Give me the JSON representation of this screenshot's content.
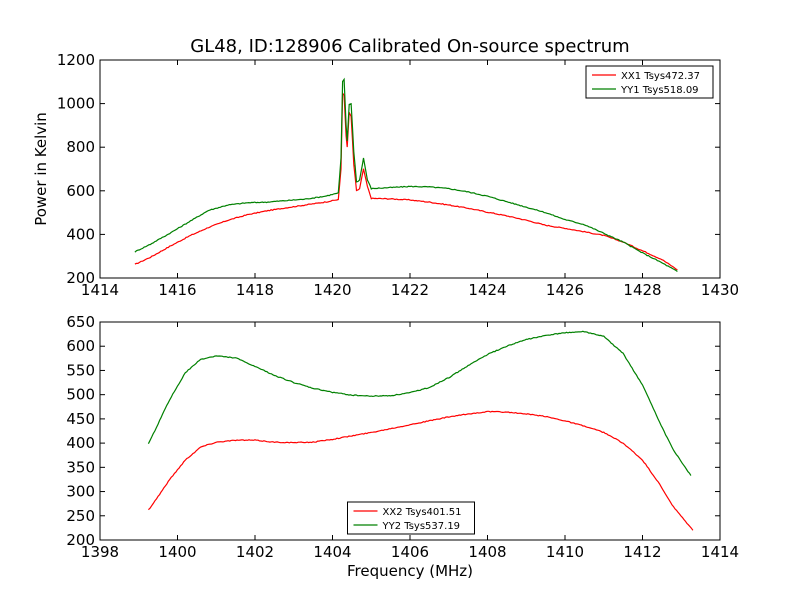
{
  "figure": {
    "title": "GL48, ID:128906 Calibrated On-source spectrum",
    "ylabel": "Power in Kelvin",
    "xlabel": "Frequency (MHz)"
  },
  "chart_data": [
    {
      "type": "line",
      "xlabel": "",
      "ylabel": "Power in Kelvin",
      "xlim": [
        1414,
        1430
      ],
      "ylim": [
        200,
        1200
      ],
      "xticks": [
        "1414",
        "1416",
        "1418",
        "1420",
        "1422",
        "1424",
        "1426",
        "1428",
        "1430"
      ],
      "yticks": [
        "200",
        "400",
        "600",
        "800",
        "1000",
        "1200"
      ],
      "legend_position": "top-right",
      "grid": false,
      "series": [
        {
          "name": "XX1 Tsys472.37",
          "color": "#ff0000",
          "points": [
            [
              1414.9,
              262
            ],
            [
              1415.3,
              295
            ],
            [
              1415.8,
              345
            ],
            [
              1416.3,
              392
            ],
            [
              1416.8,
              432
            ],
            [
              1417.3,
              465
            ],
            [
              1417.8,
              490
            ],
            [
              1418.3,
              508
            ],
            [
              1418.8,
              522
            ],
            [
              1419.3,
              535
            ],
            [
              1419.8,
              548
            ],
            [
              1420.15,
              560
            ],
            [
              1420.22,
              700
            ],
            [
              1420.26,
              1048
            ],
            [
              1420.3,
              1040
            ],
            [
              1420.35,
              850
            ],
            [
              1420.38,
              800
            ],
            [
              1420.43,
              960
            ],
            [
              1420.48,
              940
            ],
            [
              1420.55,
              720
            ],
            [
              1420.62,
              600
            ],
            [
              1420.7,
              610
            ],
            [
              1420.8,
              700
            ],
            [
              1420.9,
              620
            ],
            [
              1421.0,
              565
            ],
            [
              1421.5,
              563
            ],
            [
              1422.0,
              558
            ],
            [
              1422.5,
              548
            ],
            [
              1423.0,
              535
            ],
            [
              1423.5,
              520
            ],
            [
              1424.0,
              502
            ],
            [
              1424.5,
              485
            ],
            [
              1425.0,
              465
            ],
            [
              1425.5,
              442
            ],
            [
              1426.0,
              428
            ],
            [
              1426.5,
              412
            ],
            [
              1427.0,
              395
            ],
            [
              1427.5,
              365
            ],
            [
              1428.0,
              325
            ],
            [
              1428.5,
              285
            ],
            [
              1428.9,
              238
            ]
          ]
        },
        {
          "name": "YY1 Tsys518.09",
          "color": "#008000",
          "points": [
            [
              1414.9,
              320
            ],
            [
              1415.3,
              355
            ],
            [
              1415.8,
              405
            ],
            [
              1416.3,
              458
            ],
            [
              1416.8,
              510
            ],
            [
              1417.3,
              535
            ],
            [
              1417.8,
              545
            ],
            [
              1418.3,
              548
            ],
            [
              1418.8,
              555
            ],
            [
              1419.3,
              562
            ],
            [
              1419.8,
              575
            ],
            [
              1420.15,
              590
            ],
            [
              1420.22,
              750
            ],
            [
              1420.26,
              1100
            ],
            [
              1420.3,
              1110
            ],
            [
              1420.35,
              900
            ],
            [
              1420.38,
              830
            ],
            [
              1420.43,
              995
            ],
            [
              1420.48,
              1000
            ],
            [
              1420.55,
              780
            ],
            [
              1420.62,
              640
            ],
            [
              1420.7,
              650
            ],
            [
              1420.8,
              750
            ],
            [
              1420.9,
              650
            ],
            [
              1421.0,
              610
            ],
            [
              1421.5,
              615
            ],
            [
              1422.0,
              620
            ],
            [
              1422.5,
              618
            ],
            [
              1423.0,
              610
            ],
            [
              1423.5,
              595
            ],
            [
              1424.0,
              575
            ],
            [
              1424.5,
              550
            ],
            [
              1425.0,
              525
            ],
            [
              1425.5,
              500
            ],
            [
              1426.0,
              468
            ],
            [
              1426.5,
              445
            ],
            [
              1427.0,
              405
            ],
            [
              1427.5,
              365
            ],
            [
              1428.0,
              315
            ],
            [
              1428.5,
              270
            ],
            [
              1428.9,
              230
            ]
          ]
        }
      ]
    },
    {
      "type": "line",
      "xlabel": "Frequency (MHz)",
      "ylabel": "",
      "xlim": [
        1398,
        1414
      ],
      "ylim": [
        200,
        650
      ],
      "xticks": [
        "1398",
        "1400",
        "1402",
        "1404",
        "1406",
        "1408",
        "1410",
        "1412",
        "1414"
      ],
      "yticks": [
        "200",
        "250",
        "300",
        "350",
        "400",
        "450",
        "500",
        "550",
        "600",
        "650"
      ],
      "legend_position": "bottom-center",
      "grid": false,
      "series": [
        {
          "name": "XX2 Tsys401.51",
          "color": "#ff0000",
          "points": [
            [
              1399.25,
              262
            ],
            [
              1399.5,
              290
            ],
            [
              1399.8,
              325
            ],
            [
              1400.2,
              365
            ],
            [
              1400.6,
              392
            ],
            [
              1401.0,
              402
            ],
            [
              1401.5,
              406
            ],
            [
              1402.0,
              406
            ],
            [
              1402.5,
              402
            ],
            [
              1403.0,
              401
            ],
            [
              1403.5,
              402
            ],
            [
              1404.0,
              408
            ],
            [
              1404.5,
              415
            ],
            [
              1405.0,
              422
            ],
            [
              1405.5,
              430
            ],
            [
              1406.0,
              438
            ],
            [
              1406.5,
              446
            ],
            [
              1407.0,
              454
            ],
            [
              1407.5,
              460
            ],
            [
              1408.0,
              465
            ],
            [
              1408.5,
              464
            ],
            [
              1409.0,
              460
            ],
            [
              1409.5,
              455
            ],
            [
              1410.0,
              446
            ],
            [
              1410.5,
              435
            ],
            [
              1411.0,
              422
            ],
            [
              1411.5,
              400
            ],
            [
              1412.0,
              365
            ],
            [
              1412.4,
              320
            ],
            [
              1412.8,
              268
            ],
            [
              1413.3,
              220
            ]
          ]
        },
        {
          "name": "YY2 Tsys537.19",
          "color": "#008000",
          "points": [
            [
              1399.25,
              398
            ],
            [
              1399.5,
              440
            ],
            [
              1399.8,
              490
            ],
            [
              1400.2,
              545
            ],
            [
              1400.6,
              573
            ],
            [
              1401.0,
              580
            ],
            [
              1401.5,
              576
            ],
            [
              1402.0,
              558
            ],
            [
              1402.5,
              540
            ],
            [
              1403.0,
              525
            ],
            [
              1403.5,
              513
            ],
            [
              1404.0,
              505
            ],
            [
              1404.5,
              499
            ],
            [
              1405.0,
              497
            ],
            [
              1405.5,
              498
            ],
            [
              1406.0,
              504
            ],
            [
              1406.5,
              515
            ],
            [
              1407.0,
              535
            ],
            [
              1407.5,
              560
            ],
            [
              1408.0,
              583
            ],
            [
              1408.5,
              600
            ],
            [
              1409.0,
              614
            ],
            [
              1409.5,
              622
            ],
            [
              1410.0,
              628
            ],
            [
              1410.5,
              630
            ],
            [
              1411.0,
              620
            ],
            [
              1411.5,
              585
            ],
            [
              1412.0,
              520
            ],
            [
              1412.4,
              450
            ],
            [
              1412.8,
              385
            ],
            [
              1413.25,
              333
            ]
          ]
        }
      ]
    }
  ]
}
